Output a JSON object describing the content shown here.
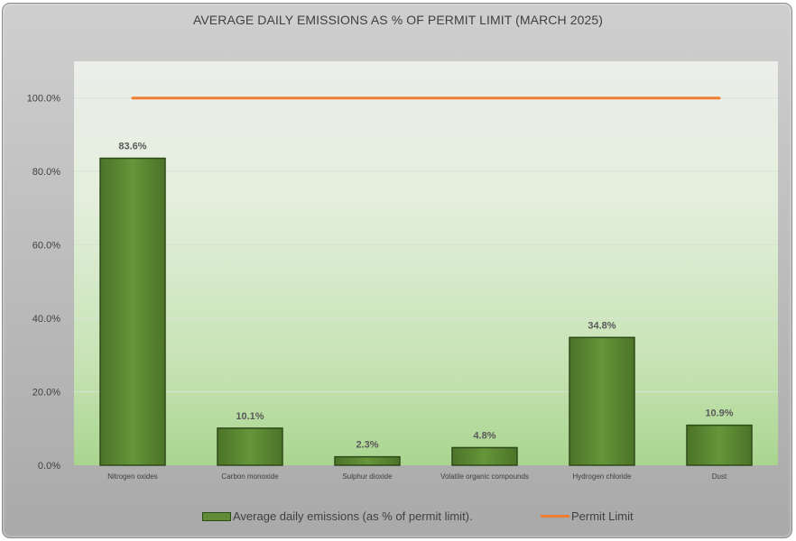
{
  "chart_data": {
    "type": "bar",
    "title": "AVERAGE DAILY EMISSIONS AS % OF PERMIT LIMIT (MARCH 2025)",
    "categories": [
      "Nitrogen oxides",
      "Carbon monoxide",
      "Sulphur dioxide",
      "Volatile organic compounds",
      "Hydrogen chloride",
      "Dust"
    ],
    "series": [
      {
        "name": "Average daily emissions (as % of permit limit).",
        "type": "bar",
        "values": [
          83.6,
          10.1,
          2.3,
          4.8,
          34.8,
          10.9
        ],
        "data_labels": [
          "83.6%",
          "10.1%",
          "2.3%",
          "4.8%",
          "34.8%",
          "10.9%"
        ]
      },
      {
        "name": "Permit Limit",
        "type": "line",
        "values": [
          100,
          100,
          100,
          100,
          100,
          100
        ]
      }
    ],
    "y_ticks": [
      "0.0%",
      "20.0%",
      "40.0%",
      "60.0%",
      "80.0%",
      "100.0%"
    ],
    "ylim": [
      0,
      110
    ],
    "grid": true,
    "legend_position": "bottom",
    "colors": {
      "bar": "#5f8c35",
      "bar_border": "#2f4a1a",
      "line": "#ed7d31"
    }
  }
}
